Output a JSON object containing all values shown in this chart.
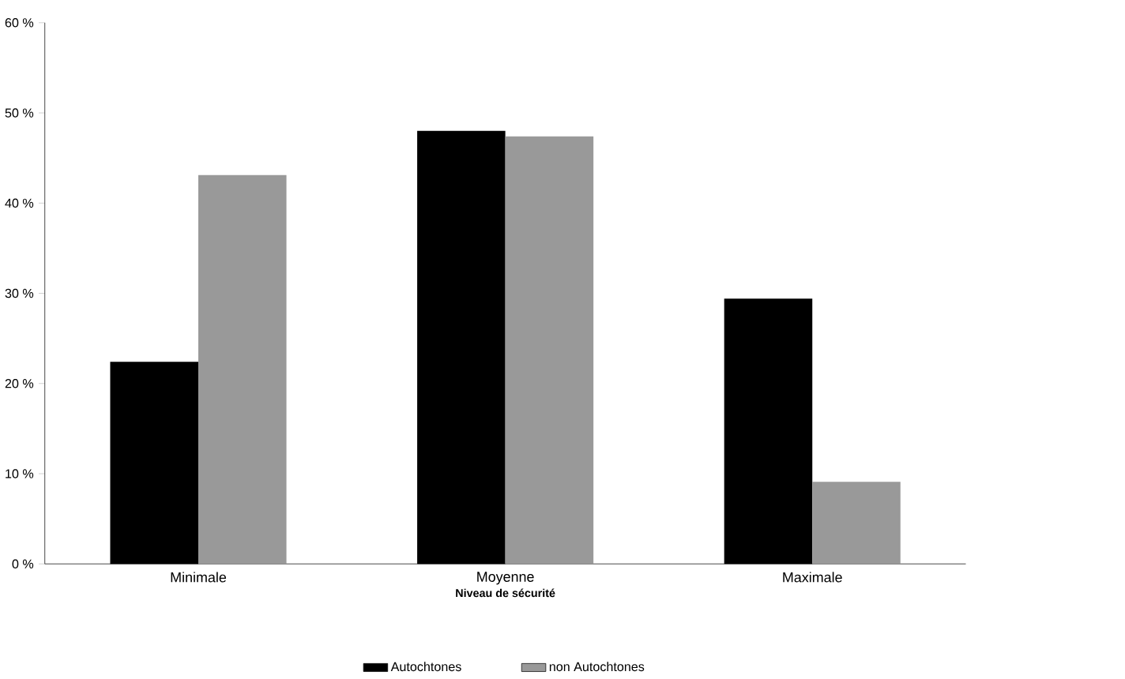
{
  "chart_data": {
    "type": "bar",
    "xlabel": "Niveau de sécurité",
    "categories": [
      "Minimale",
      "Moyenne",
      "Maximale"
    ],
    "series": [
      {
        "name": "Autochtones",
        "color": "#000000",
        "values": [
          22.4,
          48.0,
          29.4
        ]
      },
      {
        "name": "non Autochtones",
        "color": "#999999",
        "values": [
          43.1,
          47.4,
          9.1
        ]
      }
    ],
    "ylim": [
      0,
      60
    ],
    "yticks": [
      {
        "value": 0,
        "label": "0 %"
      },
      {
        "value": 10,
        "label": "10 %"
      },
      {
        "value": 20,
        "label": "20 %"
      },
      {
        "value": 30,
        "label": "30 %"
      },
      {
        "value": 40,
        "label": "40 %"
      },
      {
        "value": 50,
        "label": "50 %"
      },
      {
        "value": 60,
        "label": "60 %"
      }
    ],
    "legend": "bottom"
  }
}
